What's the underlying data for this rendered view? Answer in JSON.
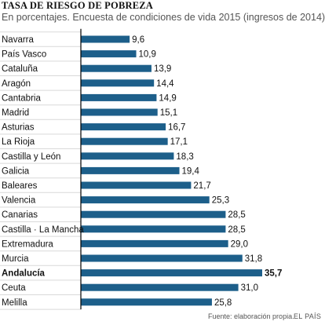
{
  "header": {
    "title": "TASA DE RIESGO DE POBREZA",
    "subtitle": "En porcentajes. Encuesta de condiciones de vida 2015 (ingresos de 2014)"
  },
  "footer": {
    "source": "Fuente: elaboración propia.",
    "brand": "EL PAÍS"
  },
  "colors": {
    "bar": "#1d5f8a",
    "axis": "#000000",
    "grid": "#d9d9d9"
  },
  "chart_data": {
    "type": "bar",
    "orientation": "horizontal",
    "highlight": "Andalucía",
    "grid": "horizontal separators",
    "categories": [
      "Navarra",
      "País Vasco",
      "Cataluña",
      "Aragón",
      "Cantabria",
      "Madrid",
      "Asturias",
      "La Rioja",
      "Castilla y León",
      "Galicia",
      "Baleares",
      "Valencia",
      "Canarias",
      "Castilla · La Mancha",
      "Extremadura",
      "Murcia",
      "Andalucía",
      "Ceuta",
      "Melilla"
    ],
    "values": [
      9.6,
      10.9,
      13.9,
      14.4,
      14.9,
      15.1,
      16.7,
      17.1,
      18.3,
      19.4,
      21.7,
      25.3,
      28.5,
      28.5,
      29.0,
      31.8,
      35.7,
      31.0,
      25.8
    ],
    "labels": [
      "9,6",
      "10,9",
      "13,9",
      "14,4",
      "14,9",
      "15,1",
      "16,7",
      "17,1",
      "18,3",
      "19,4",
      "21,7",
      "25,3",
      "28,5",
      "28,5",
      "29,0",
      "31,8",
      "35,7",
      "31,0",
      "25,8"
    ],
    "xlim": [
      0,
      35.7
    ]
  }
}
